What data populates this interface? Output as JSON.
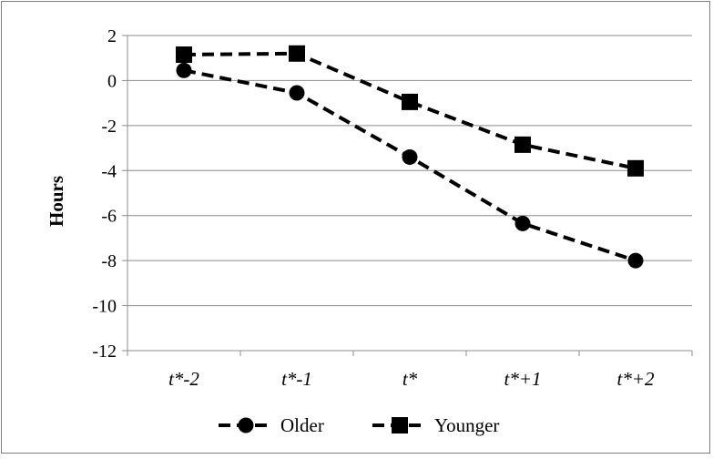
{
  "chart_data": {
    "type": "line",
    "title": "",
    "xlabel": "",
    "ylabel": "Hours",
    "categories": [
      "t*-2",
      "t*-1",
      "t*",
      "t*+1",
      "t*+2"
    ],
    "ylim": [
      -12,
      2
    ],
    "yticks": [
      2,
      0,
      -2,
      -4,
      -6,
      -8,
      -10,
      -12
    ],
    "grid": true,
    "legend_position": "bottom",
    "series": [
      {
        "name": "Older",
        "marker": "circle",
        "line_style": "dashed",
        "color": "#000000",
        "values": [
          0.45,
          -0.55,
          -3.4,
          -6.35,
          -8.0
        ]
      },
      {
        "name": "Younger",
        "marker": "square",
        "line_style": "dashed",
        "color": "#000000",
        "values": [
          1.15,
          1.2,
          -0.95,
          -2.85,
          -3.9
        ]
      }
    ],
    "gridline_color": "#8c8c8c",
    "axis_color": "#8c8c8c"
  }
}
